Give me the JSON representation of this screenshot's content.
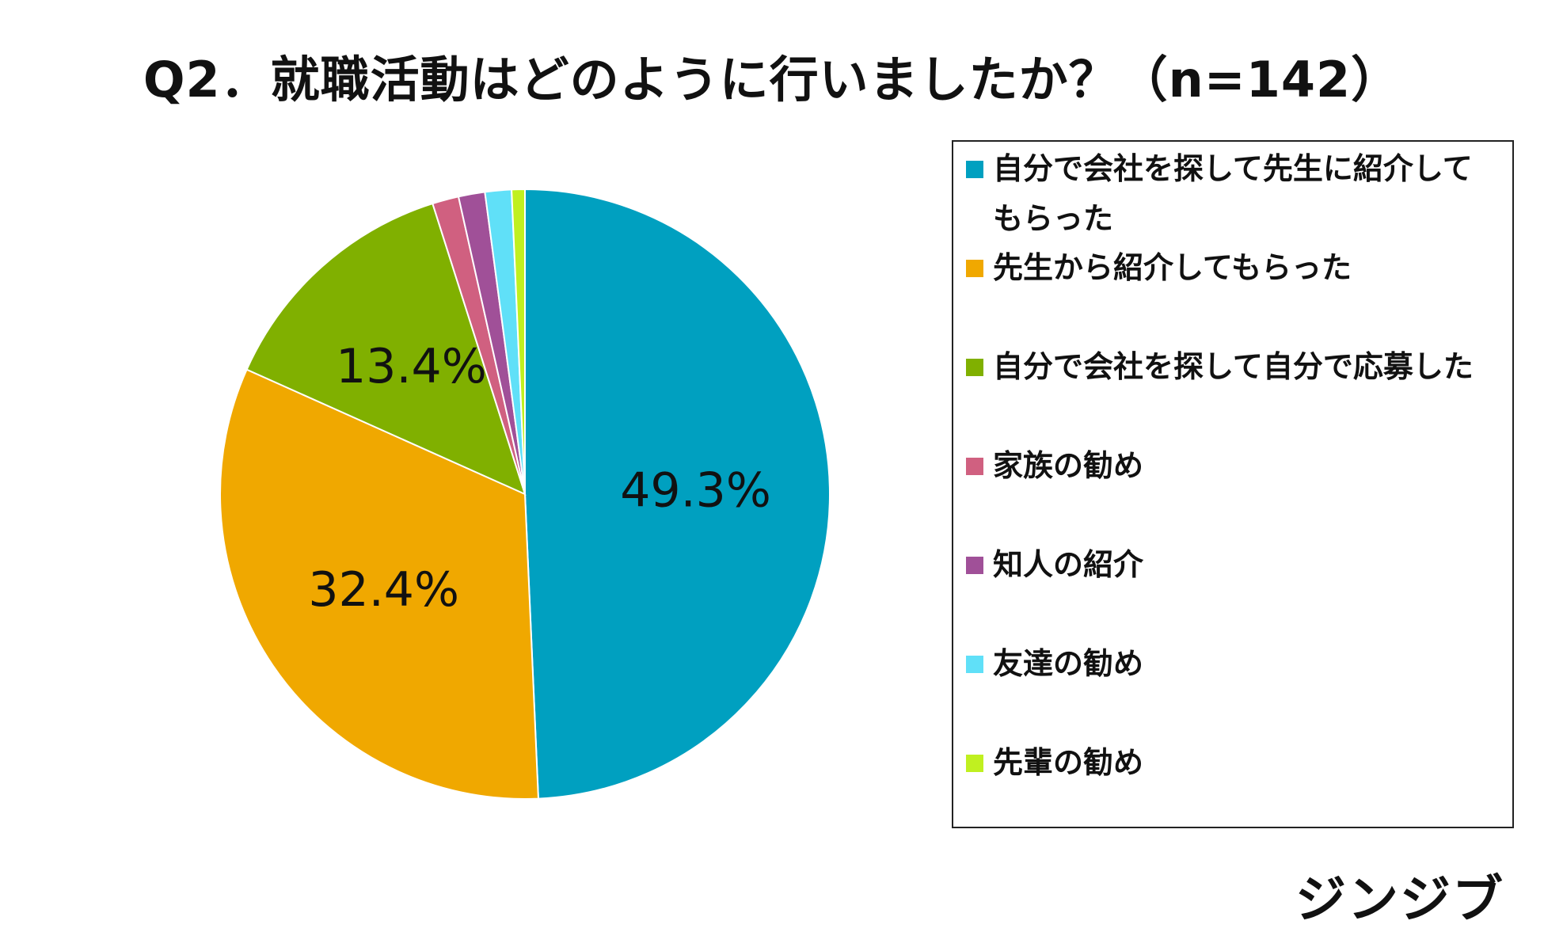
{
  "title": "Q2．就職活動はどのように行いましたか？（n=142）",
  "brand": "ジンジブ",
  "chart_data": {
    "type": "pie",
    "categories": [
      "自分で会社を探して先生に紹介してもらった",
      "先生から紹介してもらった",
      "自分で会社を探して自分で応募した",
      "家族の勧め",
      "知人の紹介",
      "友達の勧め",
      "先輩の勧め"
    ],
    "values": [
      49.3,
      32.4,
      13.4,
      1.4,
      1.4,
      1.4,
      0.7
    ],
    "data_labels": [
      "49.3%",
      "32.4%",
      "13.4%",
      "",
      "",
      "",
      ""
    ],
    "colors": [
      "#00A0C0",
      "#F0A800",
      "#80B000",
      "#D06080",
      "#A05098",
      "#60E0F8",
      "#C0F020"
    ],
    "start_angle": "12 o'clock",
    "direction": "clockwise",
    "legend_position": "right"
  }
}
